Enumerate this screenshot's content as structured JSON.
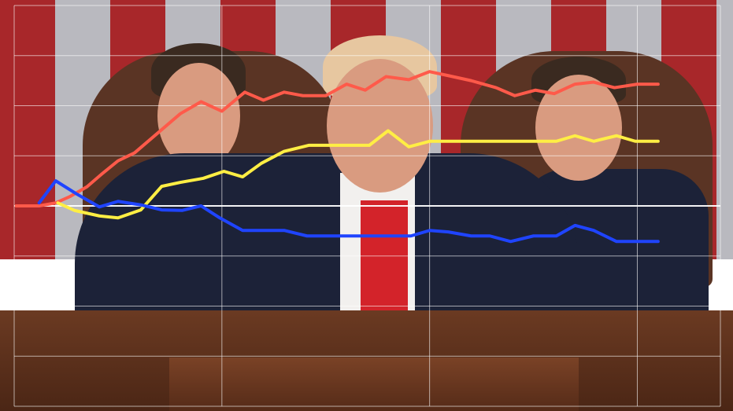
{
  "chart_data": {
    "type": "line",
    "title": "",
    "xlabel": "",
    "ylabel": "",
    "xlim": [
      0,
      3.4
    ],
    "ylim": [
      -4,
      4
    ],
    "grid": true,
    "legend": "none",
    "baseline": 0,
    "series": [
      {
        "color": "#ff5a4a",
        "points": [
          [
            0.01,
            0
          ],
          [
            0.12,
            0
          ],
          [
            0.2,
            0.06
          ],
          [
            0.27,
            0.19
          ],
          [
            0.35,
            0.38
          ],
          [
            0.42,
            0.63
          ],
          [
            0.5,
            0.9
          ],
          [
            0.58,
            1.06
          ],
          [
            0.69,
            1.45
          ],
          [
            0.8,
            1.84
          ],
          [
            0.9,
            2.08
          ],
          [
            1.0,
            1.89
          ],
          [
            1.11,
            2.27
          ],
          [
            1.2,
            2.11
          ],
          [
            1.3,
            2.27
          ],
          [
            1.39,
            2.2
          ],
          [
            1.5,
            2.2
          ],
          [
            1.6,
            2.43
          ],
          [
            1.69,
            2.31
          ],
          [
            1.79,
            2.58
          ],
          [
            1.9,
            2.52
          ],
          [
            2.0,
            2.68
          ],
          [
            2.09,
            2.6
          ],
          [
            2.2,
            2.5
          ],
          [
            2.32,
            2.36
          ],
          [
            2.41,
            2.2
          ],
          [
            2.51,
            2.31
          ],
          [
            2.6,
            2.24
          ],
          [
            2.7,
            2.43
          ],
          [
            2.79,
            2.47
          ],
          [
            2.89,
            2.36
          ],
          [
            3.0,
            2.43
          ],
          [
            3.1,
            2.43
          ]
        ]
      },
      {
        "color": "#ffee44",
        "points": [
          [
            0.21,
            0.06
          ],
          [
            0.29,
            -0.09
          ],
          [
            0.41,
            -0.2
          ],
          [
            0.5,
            -0.24
          ],
          [
            0.61,
            -0.08
          ],
          [
            0.71,
            0.39
          ],
          [
            0.8,
            0.47
          ],
          [
            0.91,
            0.55
          ],
          [
            1.01,
            0.69
          ],
          [
            1.1,
            0.58
          ],
          [
            1.19,
            0.85
          ],
          [
            1.3,
            1.09
          ],
          [
            1.42,
            1.21
          ],
          [
            1.71,
            1.21
          ],
          [
            1.8,
            1.5
          ],
          [
            1.9,
            1.18
          ],
          [
            2.0,
            1.29
          ],
          [
            2.61,
            1.29
          ],
          [
            2.7,
            1.4
          ],
          [
            2.79,
            1.29
          ],
          [
            2.9,
            1.4
          ],
          [
            2.99,
            1.29
          ],
          [
            3.1,
            1.29
          ]
        ]
      },
      {
        "color": "#1f44ff",
        "points": [
          [
            0.12,
            0.06
          ],
          [
            0.2,
            0.5
          ],
          [
            0.3,
            0.24
          ],
          [
            0.41,
            -0.02
          ],
          [
            0.5,
            0.09
          ],
          [
            0.61,
            0.02
          ],
          [
            0.71,
            -0.08
          ],
          [
            0.81,
            -0.09
          ],
          [
            0.9,
            0
          ],
          [
            0.99,
            -0.24
          ],
          [
            1.1,
            -0.49
          ],
          [
            1.3,
            -0.49
          ],
          [
            1.41,
            -0.6
          ],
          [
            1.91,
            -0.6
          ],
          [
            2.0,
            -0.49
          ],
          [
            2.09,
            -0.52
          ],
          [
            2.2,
            -0.6
          ],
          [
            2.29,
            -0.6
          ],
          [
            2.39,
            -0.71
          ],
          [
            2.5,
            -0.6
          ],
          [
            2.61,
            -0.6
          ],
          [
            2.7,
            -0.39
          ],
          [
            2.79,
            -0.49
          ],
          [
            2.9,
            -0.71
          ],
          [
            3.1,
            -0.71
          ]
        ]
      }
    ]
  }
}
